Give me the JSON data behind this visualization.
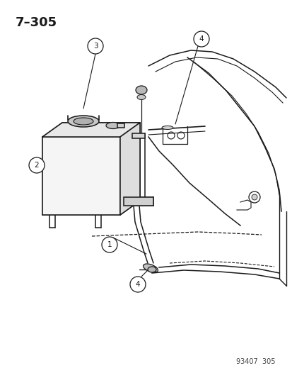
{
  "title": "7–305",
  "part_number": "93407  305",
  "background_color": "#ffffff",
  "line_color": "#1a1a1a",
  "figsize": [
    4.14,
    5.33
  ],
  "dpi": 100
}
